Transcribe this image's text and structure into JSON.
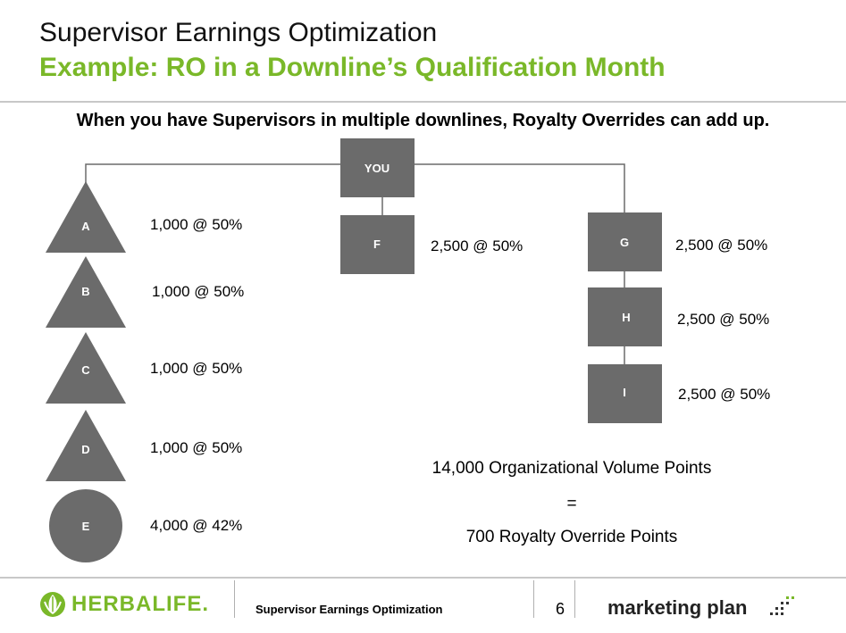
{
  "header": {
    "title": "Supervisor Earnings Optimization",
    "subtitle": "Example: RO in a Downline’s Qualification Month",
    "headline": "When you have Supervisors in multiple downlines, Royalty Overrides can add up."
  },
  "colors": {
    "accent": "#7ab829",
    "node": "#6b6b6b",
    "line": "#6b6b6b"
  },
  "nodes": {
    "you": "YOU",
    "a": {
      "label": "A",
      "value": "1,000 @ 50%"
    },
    "b": {
      "label": "B",
      "value": "1,000 @ 50%"
    },
    "c": {
      "label": "C",
      "value": "1,000 @ 50%"
    },
    "d": {
      "label": "D",
      "value": "1,000 @ 50%"
    },
    "e": {
      "label": "E",
      "value": "4,000 @ 42%"
    },
    "f": {
      "label": "F",
      "value": "2,500 @ 50%"
    },
    "g": {
      "label": "G",
      "value": "2,500 @ 50%"
    },
    "h": {
      "label": "H",
      "value": "2,500 @ 50%"
    },
    "i": {
      "label": "I",
      "value": "2,500 @ 50%"
    }
  },
  "summary": {
    "line1": "14,000 Organizational Volume Points",
    "line2": "=",
    "line3": "700 Royalty Override Points"
  },
  "footer": {
    "logo_text": "HERBALIFE.",
    "title": "Supervisor Earnings Optimization",
    "page": "6",
    "brand": "marketing plan"
  }
}
